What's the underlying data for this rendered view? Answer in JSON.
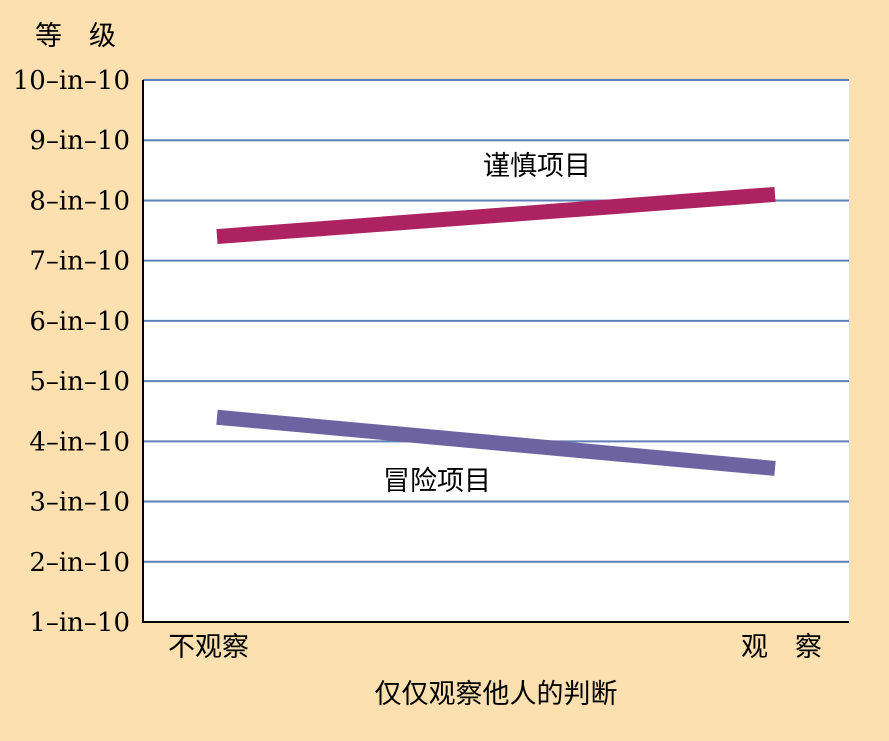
{
  "chart_data": {
    "type": "line",
    "ylabel": "等　级",
    "xlabel": "仅仅观察他人的判断",
    "categories": [
      "不观察",
      "观　察"
    ],
    "yticks": [
      "1-in-10",
      "2-in-10",
      "3-in-10",
      "4-in-10",
      "5-in-10",
      "6-in-10",
      "7-in-10",
      "8-in-10",
      "9-in-10",
      "10-in-10"
    ],
    "ylim": [
      1,
      10
    ],
    "grid": true,
    "series": [
      {
        "name": "谨慎项目",
        "values": [
          7.4,
          8.1
        ],
        "color": "#ad2362"
      },
      {
        "name": "冒险项目",
        "values": [
          4.4,
          3.55
        ],
        "color": "#6e63a1"
      }
    ]
  },
  "colors": {
    "background": "#fce0b0",
    "plot_background": "#ffffff",
    "gridline": "#5e7fb8",
    "axis": "#000000"
  }
}
